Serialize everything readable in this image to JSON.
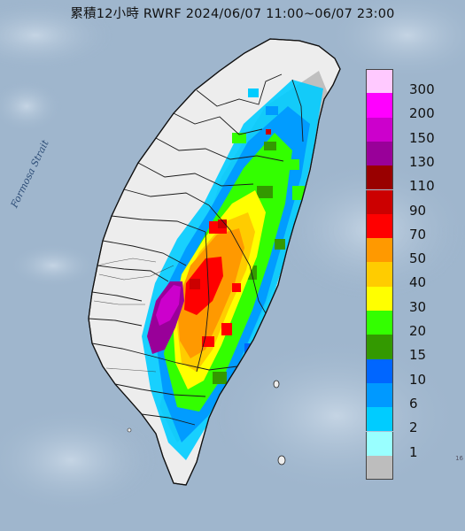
{
  "title": "累積12小時 RWRF 2024/06/07 11:00~06/07 23:00",
  "map_label": "Formosa Strait",
  "colors": {
    "sea": "#9fb6cd",
    "land": "#ededed",
    "no_rain": "#bdbdbd",
    "county_line": "#1a1a1a"
  },
  "legend": [
    {
      "label": "300",
      "color": "#ffc9ff"
    },
    {
      "label": "200",
      "color": "#ff00ff"
    },
    {
      "label": "150",
      "color": "#cc00cc"
    },
    {
      "label": "130",
      "color": "#990099"
    },
    {
      "label": "110",
      "color": "#990000"
    },
    {
      "label": "90",
      "color": "#cc0000"
    },
    {
      "label": "70",
      "color": "#ff0000"
    },
    {
      "label": "50",
      "color": "#ff9900"
    },
    {
      "label": "40",
      "color": "#ffcc00"
    },
    {
      "label": "30",
      "color": "#ffff00"
    },
    {
      "label": "20",
      "color": "#33ff00"
    },
    {
      "label": "15",
      "color": "#339900"
    },
    {
      "label": "10",
      "color": "#0066ff"
    },
    {
      "label": "6",
      "color": "#0099ff"
    },
    {
      "label": "2",
      "color": "#00ccff"
    },
    {
      "label": "1",
      "color": "#99ffff"
    },
    {
      "label": "",
      "color": "#bdbdbd"
    }
  ],
  "corner_mark": "16"
}
